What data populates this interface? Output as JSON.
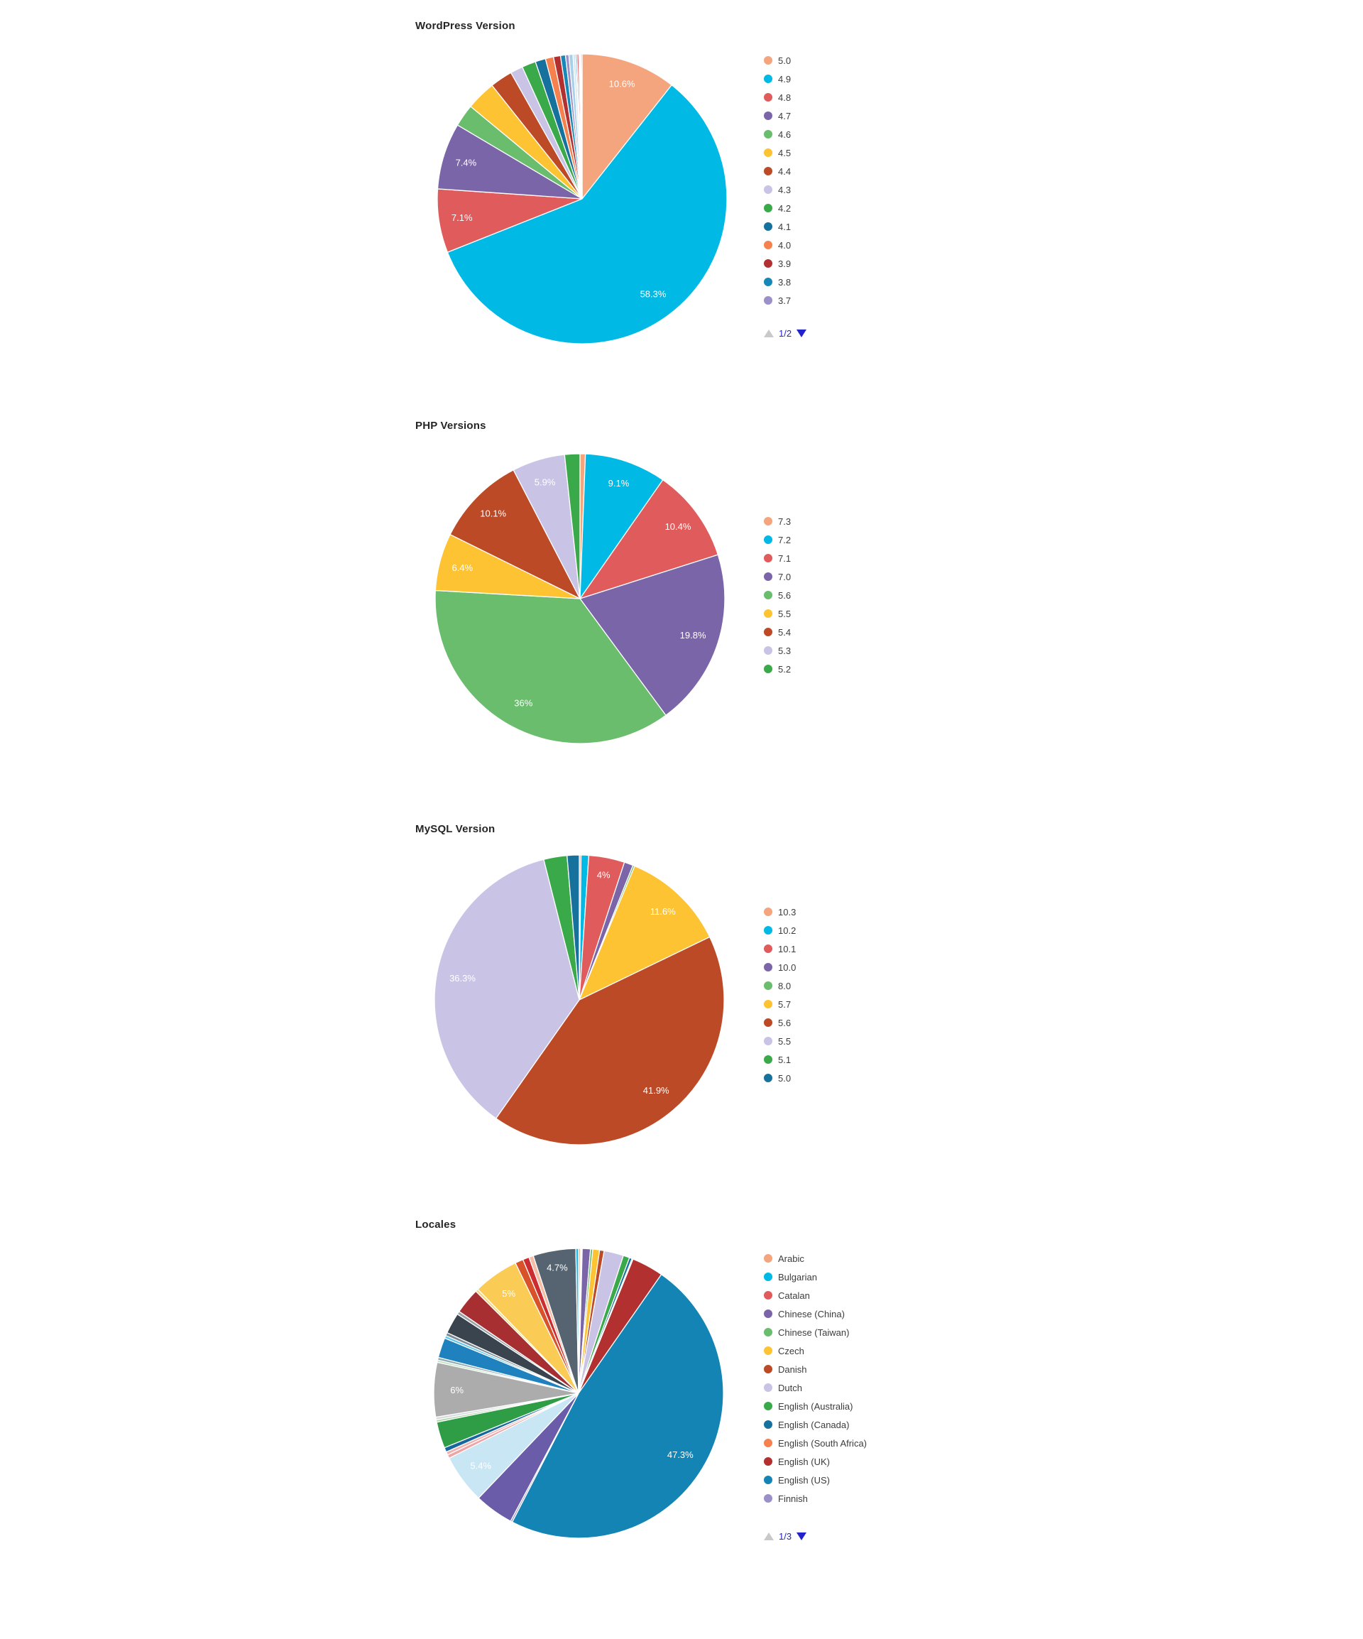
{
  "page": {
    "background": "#ffffff"
  },
  "pager_colors": {
    "disabled_arrow": "#c9c9c9",
    "active_arrow": "#2323cc",
    "text": "#2323cc"
  },
  "chart_data": [
    {
      "type": "pie",
      "title": "WordPress Version",
      "legend_position": "right",
      "unit": "percent",
      "pager": {
        "label": "1/2"
      },
      "segments": [
        {
          "label": "5.0",
          "value": 10.6,
          "pct_label": "10.6%",
          "color": "#f5a57d"
        },
        {
          "label": "4.9",
          "value": 58.3,
          "pct_label": "58.3%",
          "color": "#00b9e4"
        },
        {
          "label": "4.8",
          "value": 7.1,
          "pct_label": "7.1%",
          "color": "#e05c5c"
        },
        {
          "label": "4.7",
          "value": 7.4,
          "pct_label": "7.4%",
          "color": "#7b65a9"
        },
        {
          "label": "4.6",
          "value": 2.5,
          "pct_label": null,
          "color": "#69bd6d"
        },
        {
          "label": "4.5",
          "value": 3.3,
          "pct_label": null,
          "color": "#fdc332"
        },
        {
          "label": "4.4",
          "value": 2.5,
          "pct_label": null,
          "color": "#bd4a27"
        },
        {
          "label": "4.3",
          "value": 1.4,
          "pct_label": null,
          "color": "#c9c3e5"
        },
        {
          "label": "4.2",
          "value": 1.55,
          "pct_label": null,
          "color": "#3aa949"
        },
        {
          "label": "4.1",
          "value": 1.15,
          "pct_label": null,
          "color": "#17719d"
        },
        {
          "label": "4.0",
          "value": 0.9,
          "pct_label": null,
          "color": "#f5824e"
        },
        {
          "label": "3.9",
          "value": 0.78,
          "pct_label": null,
          "color": "#b23030"
        },
        {
          "label": "3.8",
          "value": 0.55,
          "pct_label": null,
          "color": "#1787b7"
        },
        {
          "label": "3.7",
          "value": 0.38,
          "pct_label": null,
          "color": "#9b90c8"
        },
        {
          "label": "",
          "value": 0.45,
          "pct_label": null,
          "color": "#a9d0e8"
        },
        {
          "label": "",
          "value": 0.3,
          "pct_label": null,
          "color": "#d2e8f5"
        },
        {
          "label": "",
          "value": 0.15,
          "pct_label": null,
          "color": "#2d6f9e"
        },
        {
          "label": "",
          "value": 0.2,
          "pct_label": null,
          "color": "#e06060"
        },
        {
          "label": "",
          "value": 0.12,
          "pct_label": null,
          "color": "#f0a8b2"
        },
        {
          "label": "",
          "value": 0.12,
          "pct_label": null,
          "color": "#c2e0ee"
        },
        {
          "label": "",
          "value": 0.12,
          "pct_label": null,
          "color": "#2f9e4f"
        }
      ]
    },
    {
      "type": "pie",
      "title": "PHP Versions",
      "legend_position": "right",
      "unit": "percent",
      "pager": null,
      "segments": [
        {
          "label": "7.3",
          "value": 0.6,
          "pct_label": null,
          "color": "#f5a57d"
        },
        {
          "label": "7.2",
          "value": 9.1,
          "pct_label": "9.1%",
          "color": "#00b9e4"
        },
        {
          "label": "7.1",
          "value": 10.4,
          "pct_label": "10.4%",
          "color": "#e05c5c"
        },
        {
          "label": "7.0",
          "value": 19.8,
          "pct_label": "19.8%",
          "color": "#7b65a9"
        },
        {
          "label": "5.6",
          "value": 36,
          "pct_label": "36%",
          "color": "#69bd6d"
        },
        {
          "label": "5.5",
          "value": 6.4,
          "pct_label": "6.4%",
          "color": "#fdc332"
        },
        {
          "label": "5.4",
          "value": 10.1,
          "pct_label": "10.1%",
          "color": "#bd4a27"
        },
        {
          "label": "5.3",
          "value": 5.9,
          "pct_label": "5.9%",
          "color": "#c9c3e5"
        },
        {
          "label": "5.2",
          "value": 1.7,
          "pct_label": null,
          "color": "#3aa949"
        }
      ]
    },
    {
      "type": "pie",
      "title": "MySQL Version",
      "legend_position": "right",
      "unit": "percent",
      "pager": null,
      "segments": [
        {
          "label": "10.3",
          "value": 0.2,
          "pct_label": null,
          "color": "#f5a57d"
        },
        {
          "label": "10.2",
          "value": 0.85,
          "pct_label": null,
          "color": "#00b9e4"
        },
        {
          "label": "10.1",
          "value": 4,
          "pct_label": "4%",
          "color": "#e05c5c"
        },
        {
          "label": "10.0",
          "value": 1.0,
          "pct_label": null,
          "color": "#7b65a9"
        },
        {
          "label": "8.0",
          "value": 0.2,
          "pct_label": null,
          "color": "#69bd6d"
        },
        {
          "label": "5.7",
          "value": 11.6,
          "pct_label": "11.6%",
          "color": "#fdc332"
        },
        {
          "label": "5.6",
          "value": 41.9,
          "pct_label": "41.9%",
          "color": "#bd4a27"
        },
        {
          "label": "5.5",
          "value": 36.3,
          "pct_label": "36.3%",
          "color": "#c9c3e5"
        },
        {
          "label": "5.1",
          "value": 2.6,
          "pct_label": null,
          "color": "#3aa949"
        },
        {
          "label": "5.0",
          "value": 1.35,
          "pct_label": null,
          "color": "#17719d"
        }
      ]
    },
    {
      "type": "pie",
      "title": "Locales",
      "legend_position": "right",
      "unit": "percent",
      "pager": {
        "label": "1/3"
      },
      "segments": [
        {
          "label": "Arabic",
          "value": 0.2,
          "pct_label": null,
          "color": "#f5a57d"
        },
        {
          "label": "Bulgarian",
          "value": 0.1,
          "pct_label": null,
          "color": "#00b9e4"
        },
        {
          "label": "Catalan",
          "value": 0.1,
          "pct_label": null,
          "color": "#e05c5c"
        },
        {
          "label": "Chinese (China)",
          "value": 0.9,
          "pct_label": null,
          "color": "#7b65a9"
        },
        {
          "label": "Chinese (Taiwan)",
          "value": 0.25,
          "pct_label": null,
          "color": "#69bd6d"
        },
        {
          "label": "Czech",
          "value": 0.75,
          "pct_label": null,
          "color": "#fdc332"
        },
        {
          "label": "Danish",
          "value": 0.5,
          "pct_label": null,
          "color": "#bd4a27"
        },
        {
          "label": "Dutch",
          "value": 2.15,
          "pct_label": null,
          "color": "#c9c3e5"
        },
        {
          "label": "English (Australia)",
          "value": 0.7,
          "pct_label": null,
          "color": "#3aa949"
        },
        {
          "label": "English (Canada)",
          "value": 0.3,
          "pct_label": null,
          "color": "#17719d"
        },
        {
          "label": "English (South Africa)",
          "value": 0.12,
          "pct_label": null,
          "color": "#f5824e"
        },
        {
          "label": "English (UK)",
          "value": 3.5,
          "pct_label": null,
          "color": "#b23030"
        },
        {
          "label": "English (US)",
          "value": 47.3,
          "pct_label": "47.3%",
          "color": "#1384b4"
        },
        {
          "label": "Finnish",
          "value": 0.2,
          "pct_label": null,
          "color": "#9b90c8"
        },
        {
          "label": "",
          "value": 4.3,
          "pct_label": null,
          "color": "#6a5ca8"
        },
        {
          "label": "",
          "value": 5.4,
          "pct_label": "5.4%",
          "color": "#c9e6f4"
        },
        {
          "label": "",
          "value": 0.4,
          "pct_label": null,
          "color": "#efa3a3"
        },
        {
          "label": "",
          "value": 0.35,
          "pct_label": null,
          "color": "#f0b0b0"
        },
        {
          "label": "",
          "value": 0.5,
          "pct_label": null,
          "color": "#15679e"
        },
        {
          "label": "",
          "value": 2.9,
          "pct_label": null,
          "color": "#2f9c46"
        },
        {
          "label": "",
          "value": 0.25,
          "pct_label": null,
          "color": "#a8d8a8"
        },
        {
          "label": "",
          "value": 0.3,
          "pct_label": null,
          "color": "#d8dcde"
        },
        {
          "label": "",
          "value": 6.0,
          "pct_label": "6%",
          "color": "#acacac"
        },
        {
          "label": "",
          "value": 0.25,
          "pct_label": null,
          "color": "#bfe3c0"
        },
        {
          "label": "",
          "value": 0.3,
          "pct_label": null,
          "color": "#8fabb8"
        },
        {
          "label": "",
          "value": 2.2,
          "pct_label": null,
          "color": "#1f82be"
        },
        {
          "label": "",
          "value": 0.3,
          "pct_label": null,
          "color": "#62c8e8"
        },
        {
          "label": "",
          "value": 0.35,
          "pct_label": null,
          "color": "#7c8a94"
        },
        {
          "label": "",
          "value": 2.3,
          "pct_label": null,
          "color": "#39444e"
        },
        {
          "label": "",
          "value": 0.35,
          "pct_label": null,
          "color": "#98a2a8"
        },
        {
          "label": "",
          "value": 2.85,
          "pct_label": null,
          "color": "#a72f31"
        },
        {
          "label": "",
          "value": 0.3,
          "pct_label": null,
          "color": "#f5d87e"
        },
        {
          "label": "",
          "value": 5.0,
          "pct_label": "5%",
          "color": "#facc55"
        },
        {
          "label": "",
          "value": 0.9,
          "pct_label": null,
          "color": "#d8532a"
        },
        {
          "label": "",
          "value": 0.7,
          "pct_label": null,
          "color": "#cb2d30"
        },
        {
          "label": "",
          "value": 0.5,
          "pct_label": null,
          "color": "#f4bfa6"
        },
        {
          "label": "",
          "value": 4.7,
          "pct_label": "4.7%",
          "color": "#566472"
        },
        {
          "label": "",
          "value": 0.3,
          "pct_label": null,
          "color": "#2bb8de"
        }
      ]
    }
  ]
}
